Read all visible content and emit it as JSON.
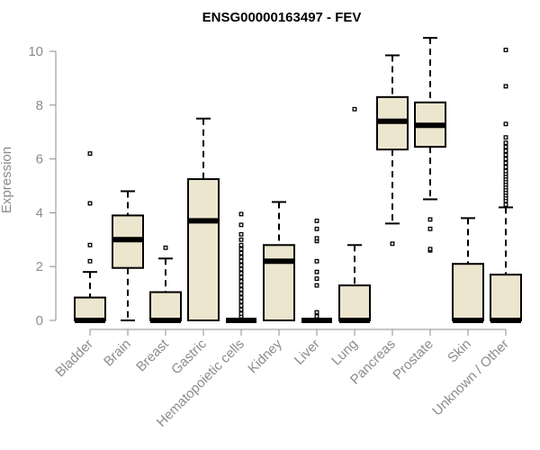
{
  "chart_data": {
    "type": "boxplot",
    "title": "ENSG00000163497 - FEV",
    "xlabel": "",
    "ylabel": "Expression",
    "ylim": [
      0,
      10.5
    ],
    "yticks": [
      0,
      2,
      4,
      6,
      8,
      10
    ],
    "yticklabels": [
      "0",
      "2",
      "4",
      "6",
      "8",
      "10"
    ],
    "grid": false,
    "colors": {
      "box_fill": "#ede6cf",
      "outline": "#000000",
      "axis": "#8c8c8c",
      "title": "#000000"
    },
    "categories": [
      "Bladder",
      "Brain",
      "Breast",
      "Gastric",
      "Hematopoietic cells",
      "Kidney",
      "Liver",
      "Lung",
      "Pancreas",
      "Prostate",
      "Skin",
      "Unknown / Other"
    ],
    "boxes": [
      {
        "q1": 0,
        "median": 0,
        "q3": 0.85,
        "whisker_low": 0,
        "whisker_high": 1.8,
        "outliers": [
          2.2,
          2.8,
          4.35,
          6.2
        ]
      },
      {
        "q1": 1.95,
        "median": 3.0,
        "q3": 3.9,
        "whisker_low": 0,
        "whisker_high": 4.8,
        "outliers": []
      },
      {
        "q1": 0,
        "median": 0,
        "q3": 1.05,
        "whisker_low": 0,
        "whisker_high": 2.3,
        "outliers": [
          2.7
        ]
      },
      {
        "q1": 0,
        "median": 3.7,
        "q3": 5.25,
        "whisker_low": 0,
        "whisker_high": 7.5,
        "outliers": []
      },
      {
        "q1": 0,
        "median": 0,
        "q3": 0,
        "whisker_low": 0,
        "whisker_high": 0,
        "outliers": [
          0.15,
          0.25,
          0.4,
          0.55,
          0.7,
          0.85,
          1.0,
          1.15,
          1.3,
          1.45,
          1.6,
          1.75,
          1.9,
          2.05,
          2.2,
          2.35,
          2.5,
          2.65,
          2.8,
          3.0,
          3.2,
          3.55,
          3.95
        ]
      },
      {
        "q1": 0,
        "median": 2.2,
        "q3": 2.8,
        "whisker_low": 0,
        "whisker_high": 4.4,
        "outliers": []
      },
      {
        "q1": 0,
        "median": 0,
        "q3": 0,
        "whisker_low": 0,
        "whisker_high": 0,
        "outliers": [
          0.15,
          0.3,
          1.3,
          1.55,
          1.8,
          2.2,
          2.95,
          3.05,
          3.4,
          3.7
        ]
      },
      {
        "q1": 0,
        "median": 0,
        "q3": 1.3,
        "whisker_low": 0,
        "whisker_high": 2.8,
        "outliers": [
          7.85
        ]
      },
      {
        "q1": 6.35,
        "median": 7.4,
        "q3": 8.3,
        "whisker_low": 3.6,
        "whisker_high": 9.85,
        "outliers": [
          2.85
        ]
      },
      {
        "q1": 6.45,
        "median": 7.25,
        "q3": 8.1,
        "whisker_low": 4.5,
        "whisker_high": 10.5,
        "outliers": [
          2.6,
          2.65,
          3.4,
          3.75
        ]
      },
      {
        "q1": 0,
        "median": 0,
        "q3": 2.1,
        "whisker_low": 0,
        "whisker_high": 3.8,
        "outliers": []
      },
      {
        "q1": 0,
        "median": 0,
        "q3": 1.7,
        "whisker_low": 0,
        "whisker_high": 4.2,
        "outliers": [
          4.3,
          4.45,
          4.55,
          4.65,
          4.75,
          4.85,
          4.95,
          5.05,
          5.15,
          5.25,
          5.35,
          5.45,
          5.55,
          5.7,
          5.85,
          6.0,
          6.15,
          6.3,
          6.45,
          6.6,
          6.8,
          7.3,
          8.7,
          10.05
        ]
      }
    ]
  }
}
